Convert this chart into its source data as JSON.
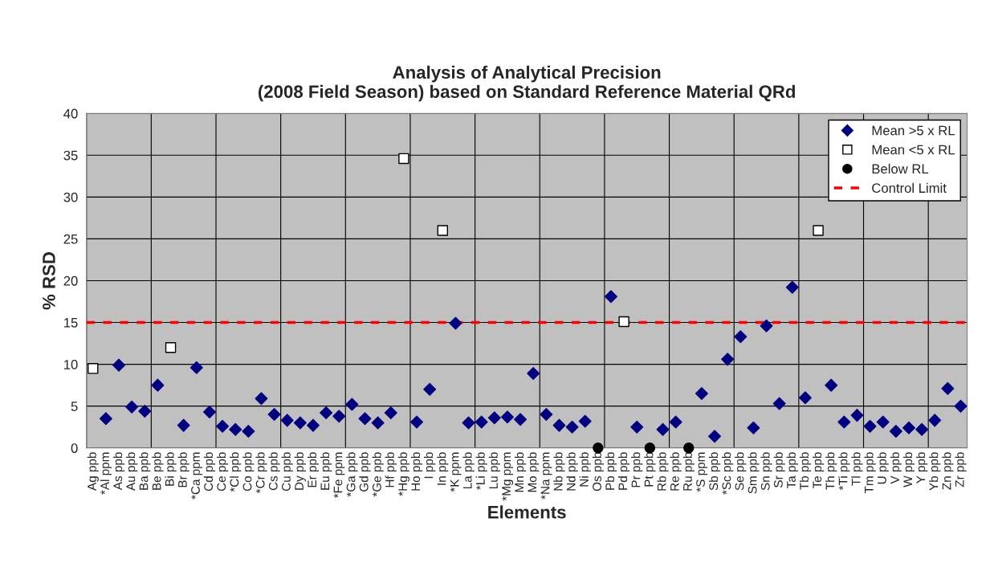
{
  "chart_data": {
    "type": "scatter",
    "title": "Analysis of Analytical Precision\n(2008 Field Season) based on Standard Reference Material QRd",
    "xlabel": "Elements",
    "ylabel": "% RSD",
    "categories": [
      "Ag ppb",
      "*Al ppm",
      "As ppb",
      "Au ppb",
      "Ba ppb",
      "Be ppb",
      "Bi ppb",
      "Br ppb",
      "*Ca ppm",
      "Cd ppb",
      "Ce ppb",
      "*Cl ppb",
      "Co ppb",
      "*Cr ppb",
      "Cs ppb",
      "Cu ppb",
      "Dy ppb",
      "Er ppb",
      "Eu ppb",
      "*Fe ppm",
      "*Ga ppb",
      "Gd ppb",
      "*Ge ppb",
      "Hf ppb",
      "*Hg ppb",
      "Ho ppb",
      "I ppb",
      "In ppb",
      "*K ppm",
      "La ppb",
      "*Li ppb",
      "Lu ppb",
      "*Mg ppm",
      "Mn ppb",
      "Mo ppb",
      "*Na ppm",
      "Nb ppb",
      "Nd ppb",
      "Ni ppb",
      "Os ppb",
      "Pb ppb",
      "Pd ppb",
      "Pr ppb",
      "Pt ppb",
      "Rb ppb",
      "Re ppb",
      "Ru ppb",
      "*S ppm",
      "Sb ppb",
      "*Sc ppb",
      "Se ppb",
      "Sm ppb",
      "Sn ppb",
      "Sr ppb",
      "Ta ppb",
      "Tb ppb",
      "Te ppb",
      "Th ppb",
      "*Ti ppb",
      "Tl ppb",
      "Tm ppb",
      "U ppb",
      "V ppb",
      "W ppb",
      "Y ppb",
      "Yb ppb",
      "Zn ppb",
      "Zr ppb"
    ],
    "series": [
      {
        "name": "Mean >5 x RL",
        "color": "#000080",
        "marker": "diamond",
        "values": [
          null,
          3.5,
          9.9,
          4.9,
          4.4,
          7.5,
          null,
          2.7,
          9.6,
          4.3,
          2.6,
          2.2,
          2.0,
          5.9,
          4.0,
          3.3,
          3.0,
          2.7,
          4.2,
          3.8,
          5.2,
          3.5,
          3.0,
          4.2,
          null,
          3.1,
          7.0,
          null,
          14.9,
          3.0,
          3.1,
          3.6,
          3.7,
          3.4,
          8.9,
          4.0,
          2.7,
          2.5,
          3.2,
          null,
          18.1,
          null,
          2.5,
          null,
          2.2,
          3.1,
          null,
          6.5,
          1.4,
          10.6,
          13.3,
          2.4,
          14.6,
          5.3,
          19.2,
          6.0,
          null,
          7.5,
          3.1,
          3.9,
          2.6,
          3.1,
          2.0,
          2.4,
          2.2,
          3.3,
          7.1,
          5.0
        ]
      },
      {
        "name": "Mean <5 x RL",
        "color": "#ffffff",
        "marker": "square",
        "values": [
          9.5,
          null,
          null,
          null,
          null,
          null,
          12.0,
          null,
          null,
          null,
          null,
          null,
          null,
          null,
          null,
          null,
          null,
          null,
          null,
          null,
          null,
          null,
          null,
          null,
          34.6,
          null,
          null,
          26.0,
          null,
          null,
          null,
          null,
          null,
          null,
          null,
          null,
          null,
          null,
          null,
          null,
          null,
          15.1,
          null,
          null,
          null,
          null,
          null,
          null,
          null,
          null,
          null,
          null,
          null,
          null,
          null,
          null,
          26.0,
          null,
          null,
          null,
          null,
          null,
          null,
          null,
          null,
          null,
          null,
          null
        ]
      },
      {
        "name": "Below RL",
        "color": "#000000",
        "marker": "circle",
        "values": [
          null,
          null,
          null,
          null,
          null,
          null,
          null,
          null,
          null,
          null,
          null,
          null,
          null,
          null,
          null,
          null,
          null,
          null,
          null,
          null,
          null,
          null,
          null,
          null,
          null,
          null,
          null,
          null,
          null,
          null,
          null,
          null,
          null,
          null,
          null,
          null,
          null,
          null,
          null,
          0,
          null,
          null,
          null,
          0,
          null,
          null,
          0,
          null,
          null,
          null,
          null,
          null,
          null,
          null,
          null,
          null,
          null,
          null,
          null,
          null,
          null,
          null,
          null,
          null,
          null,
          null,
          null,
          null
        ]
      }
    ],
    "ref_lines": [
      {
        "axis": "y",
        "value": 15,
        "label": "Control Limit",
        "color": "#ff0000",
        "line_style": "dashed"
      }
    ],
    "ylim": [
      0,
      40
    ],
    "yticks": [
      0,
      5,
      10,
      15,
      20,
      25,
      30,
      35,
      40
    ],
    "grid": true,
    "legend": "top right"
  }
}
